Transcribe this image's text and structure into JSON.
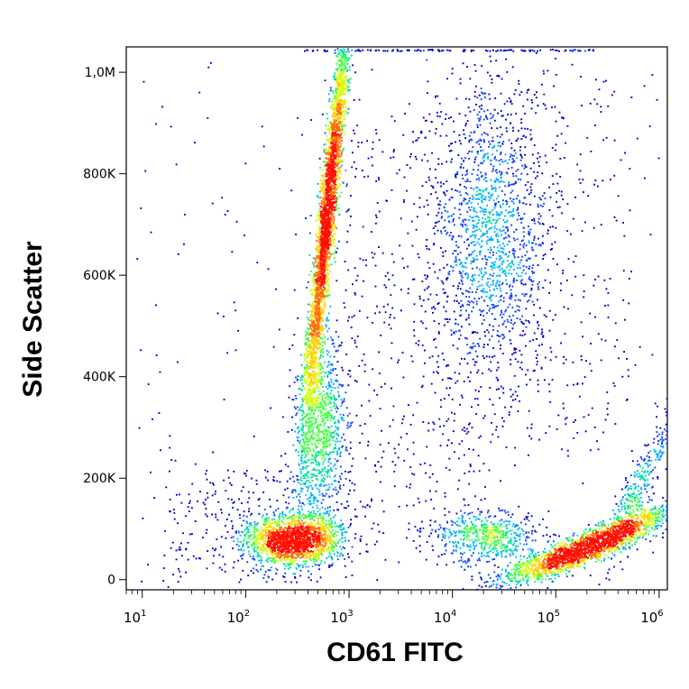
{
  "chart_data": {
    "type": "scatter",
    "xlabel": "CD61 FITC",
    "ylabel": "Side Scatter",
    "x_scale": "log",
    "xlim": [
      7,
      1200000
    ],
    "ylim": [
      -20000,
      1050000
    ],
    "x_ticks": [
      {
        "value": 10,
        "base": "10",
        "exp": "1"
      },
      {
        "value": 100,
        "base": "10",
        "exp": "2"
      },
      {
        "value": 1000,
        "base": "10",
        "exp": "3"
      },
      {
        "value": 10000,
        "base": "10",
        "exp": "4"
      },
      {
        "value": 100000,
        "base": "10",
        "exp": "5"
      },
      {
        "value": 1000000,
        "base": "10",
        "exp": "6"
      }
    ],
    "y_ticks": [
      {
        "value": 0,
        "label": "0"
      },
      {
        "value": 200000,
        "label": "200K"
      },
      {
        "value": 400000,
        "label": "400K"
      },
      {
        "value": 600000,
        "label": "600K"
      },
      {
        "value": 800000,
        "label": "800K"
      },
      {
        "value": 1000000,
        "label": "1,0M"
      }
    ],
    "density_colors": [
      "#0000cc",
      "#1040ff",
      "#00b0ff",
      "#00e0a0",
      "#40ff40",
      "#d0ff00",
      "#ffd000",
      "#ff7000",
      "#ff1000"
    ],
    "populations": [
      {
        "x": 450,
        "y": 95000,
        "density": "very high"
      },
      {
        "x": 600,
        "y": 680000,
        "density": "very high"
      },
      {
        "x": 480,
        "y": 330000,
        "density": "medium"
      },
      {
        "x": 25000,
        "y": 700000,
        "density": "medium"
      },
      {
        "x": 20000,
        "y": 100000,
        "density": "medium"
      },
      {
        "x": 200000,
        "y": 85000,
        "density": "very high"
      }
    ]
  }
}
